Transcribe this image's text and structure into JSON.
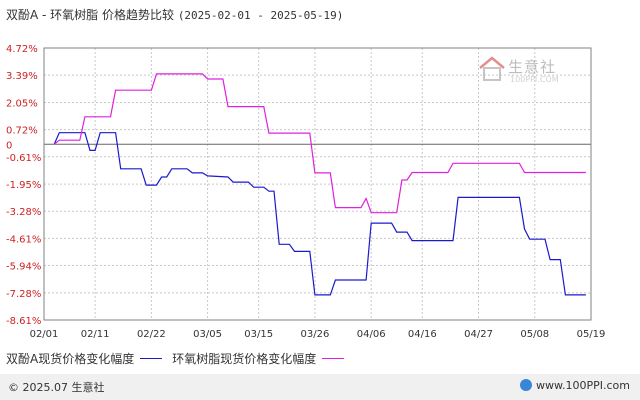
{
  "title": {
    "text": "双酚A - 环氧树脂 价格趋势比较",
    "range": "(2025-02-01 - 2025-05-19)"
  },
  "watermark": {
    "name": "生意社",
    "url": "100PPI.COM"
  },
  "footer": {
    "copyright": "© 2025.07 生意社",
    "site": "www.100PPI.com"
  },
  "colors": {
    "series1": "#1a1acc",
    "series2": "#e020e0",
    "grid": "#c8c8c8",
    "axis": "#808080",
    "zero": "#666666"
  },
  "chart_data": {
    "type": "line",
    "y_ticks": [
      "4.72%",
      "3.39%",
      "2.05%",
      "0.72%",
      "0",
      "-0.61%",
      "-1.95%",
      "-3.28%",
      "-4.61%",
      "-5.94%",
      "-7.28%",
      "-8.61%"
    ],
    "y_tick_values": [
      4.72,
      3.39,
      2.05,
      0.72,
      0,
      -0.61,
      -1.95,
      -3.28,
      -4.61,
      -5.94,
      -7.28,
      -8.61
    ],
    "ylim": [
      -8.61,
      4.72
    ],
    "x_ticks": [
      "02/01",
      "02/11",
      "02/22",
      "03/05",
      "03/15",
      "03/26",
      "04/06",
      "04/16",
      "04/27",
      "05/08",
      "05/19"
    ],
    "x_tick_days": [
      0,
      10,
      21,
      32,
      42,
      53,
      64,
      74,
      85,
      96,
      107
    ],
    "grid": true,
    "legend_position": "bottom",
    "series": [
      {
        "name": "双酚A现货价格变化幅度",
        "points": [
          [
            2,
            0
          ],
          [
            3,
            0.57
          ],
          [
            8,
            0.57
          ],
          [
            9,
            -0.3
          ],
          [
            10,
            -0.3
          ],
          [
            11,
            0.57
          ],
          [
            14,
            0.57
          ],
          [
            15,
            -1.2
          ],
          [
            19,
            -1.2
          ],
          [
            20,
            -2.0
          ],
          [
            22,
            -2.0
          ],
          [
            23,
            -1.6
          ],
          [
            24,
            -1.6
          ],
          [
            25,
            -1.2
          ],
          [
            28,
            -1.2
          ],
          [
            29,
            -1.4
          ],
          [
            31,
            -1.4
          ],
          [
            32,
            -1.55
          ],
          [
            36,
            -1.6
          ],
          [
            37,
            -1.85
          ],
          [
            40,
            -1.85
          ],
          [
            41,
            -2.1
          ],
          [
            43,
            -2.1
          ],
          [
            44,
            -2.3
          ],
          [
            45,
            -2.3
          ],
          [
            46,
            -4.9
          ],
          [
            48,
            -4.9
          ],
          [
            49,
            -5.25
          ],
          [
            52,
            -5.25
          ],
          [
            53,
            -7.38
          ],
          [
            56,
            -7.38
          ],
          [
            57,
            -6.65
          ],
          [
            63,
            -6.65
          ],
          [
            64,
            -3.86
          ],
          [
            68,
            -3.86
          ],
          [
            69,
            -4.3
          ],
          [
            71,
            -4.3
          ],
          [
            72,
            -4.72
          ],
          [
            80,
            -4.72
          ],
          [
            81,
            -2.6
          ],
          [
            93,
            -2.6
          ],
          [
            94,
            -4.15
          ],
          [
            95,
            -4.65
          ],
          [
            98,
            -4.65
          ],
          [
            99,
            -5.65
          ],
          [
            101,
            -5.65
          ],
          [
            102,
            -7.38
          ],
          [
            106,
            -7.38
          ]
        ]
      },
      {
        "name": "环氧树脂现货价格变化幅度",
        "points": [
          [
            2,
            0
          ],
          [
            3,
            0.2
          ],
          [
            7,
            0.2
          ],
          [
            8,
            1.35
          ],
          [
            13,
            1.35
          ],
          [
            14,
            2.65
          ],
          [
            21,
            2.65
          ],
          [
            22,
            3.45
          ],
          [
            31,
            3.45
          ],
          [
            32,
            3.2
          ],
          [
            35,
            3.2
          ],
          [
            36,
            1.85
          ],
          [
            43,
            1.85
          ],
          [
            44,
            0.55
          ],
          [
            52,
            0.55
          ],
          [
            53,
            -1.4
          ],
          [
            56,
            -1.4
          ],
          [
            57,
            -3.1
          ],
          [
            62,
            -3.1
          ],
          [
            63,
            -2.65
          ],
          [
            64,
            -3.35
          ],
          [
            69,
            -3.35
          ],
          [
            70,
            -1.75
          ],
          [
            71,
            -1.75
          ],
          [
            72,
            -1.38
          ],
          [
            79,
            -1.38
          ],
          [
            80,
            -0.93
          ],
          [
            93,
            -0.93
          ],
          [
            94,
            -1.38
          ],
          [
            106,
            -1.38
          ]
        ]
      }
    ]
  }
}
